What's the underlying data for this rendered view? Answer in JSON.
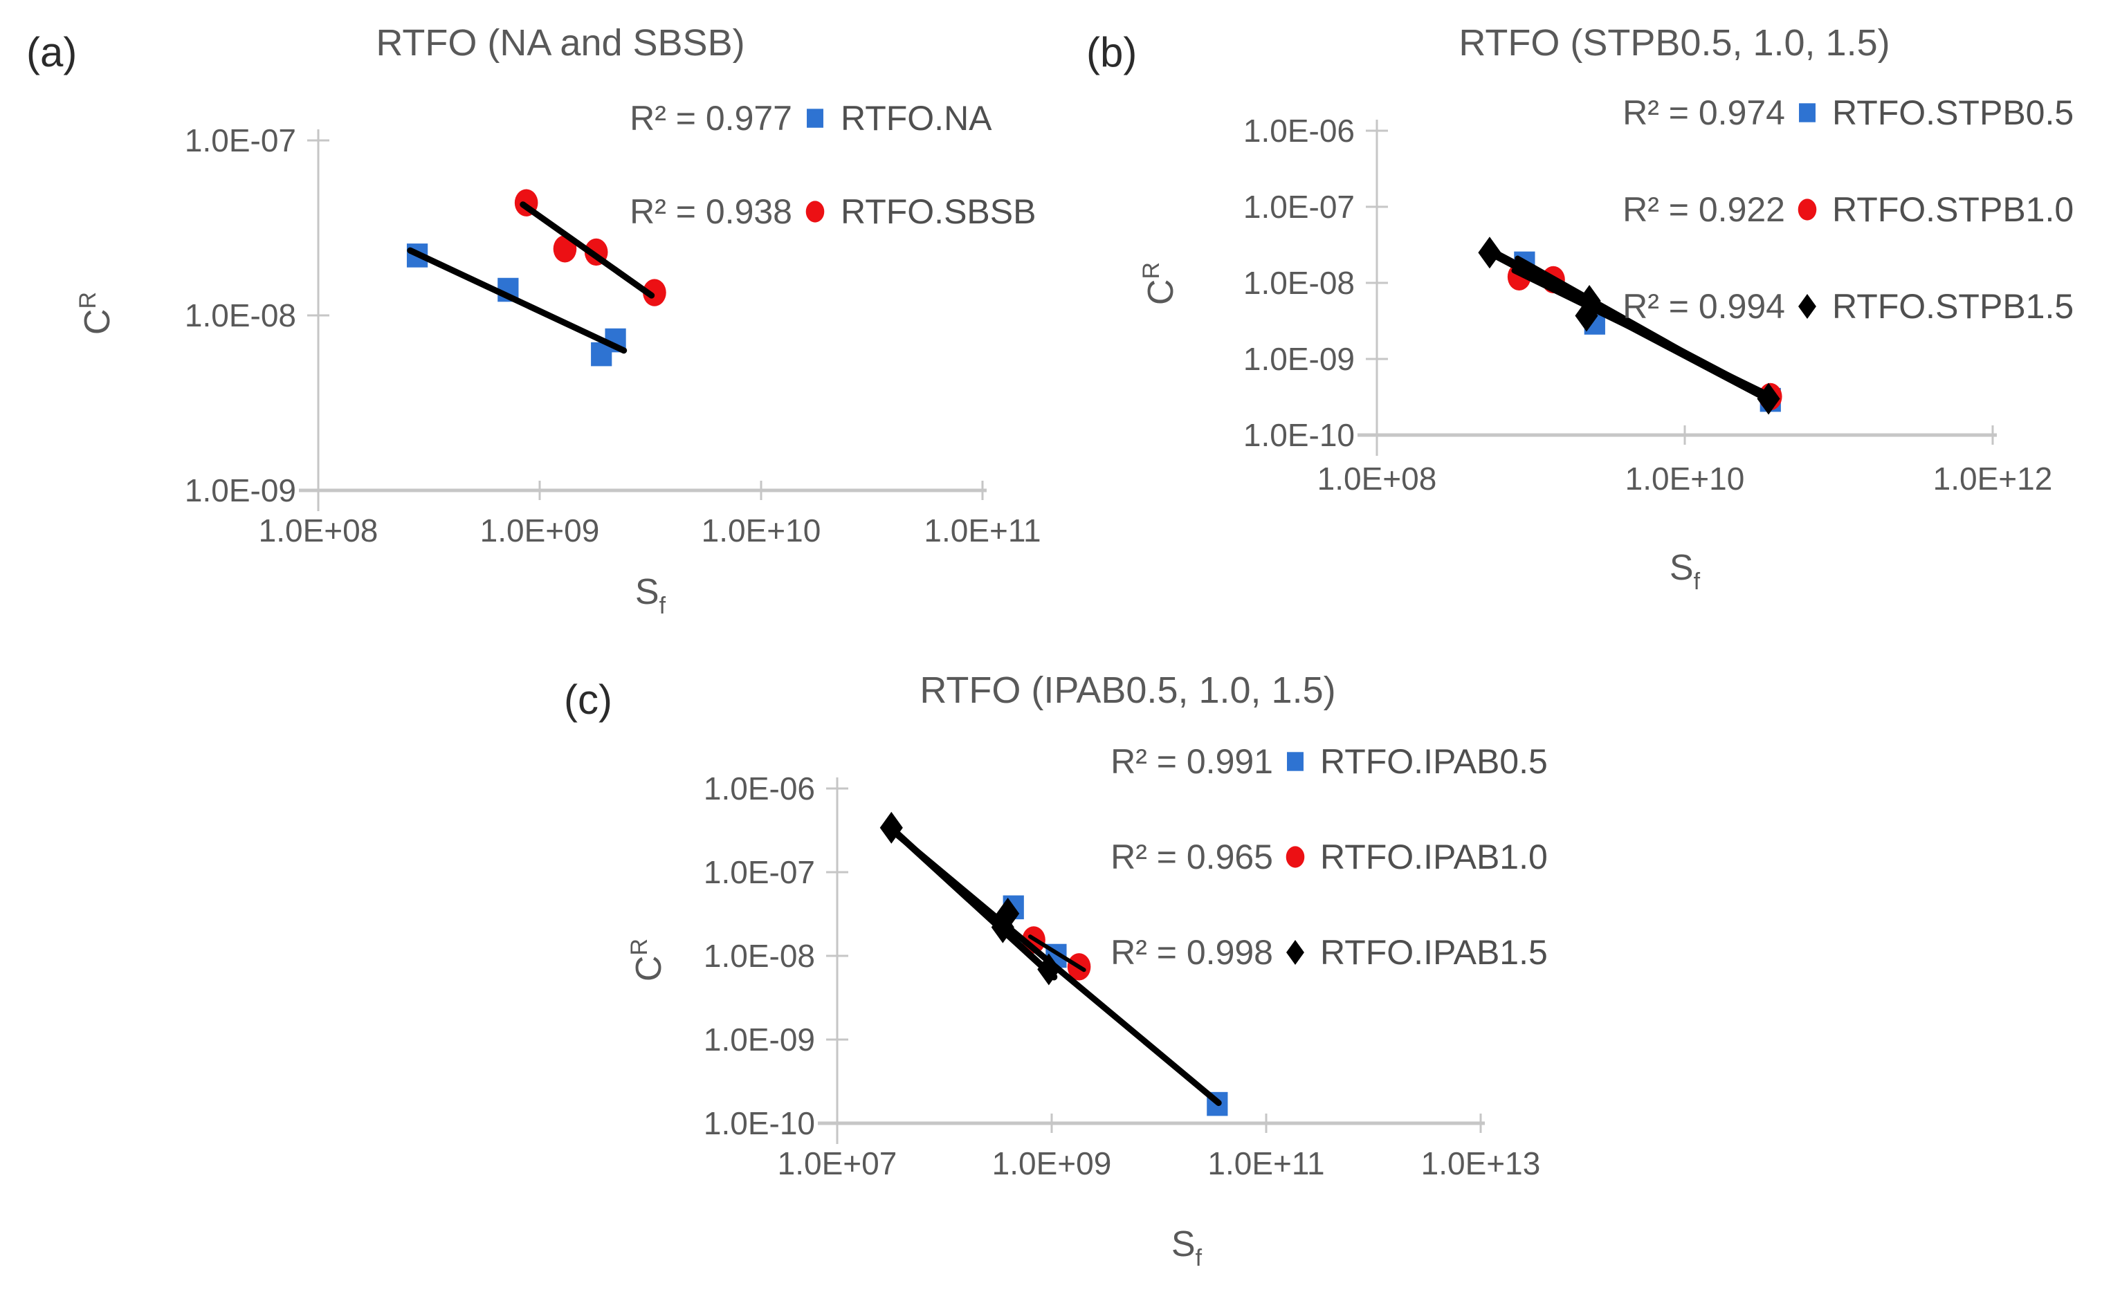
{
  "figure": {
    "background": "#ffffff"
  },
  "colors": {
    "blue": "#2E73D2",
    "red": "#EC1014",
    "black": "#000000",
    "axis": "#C6C6C6",
    "tick_text": "#595959",
    "title_text": "#595959",
    "panel_letter": "#2b2b2b"
  },
  "chart_data": [
    {
      "id": "a",
      "panel_label": "(a)",
      "title": "RTFO (NA and SBSB)",
      "type": "scatter",
      "xlabel": {
        "base": "S",
        "sub": "f"
      },
      "ylabel": {
        "base": "C",
        "sup": "R"
      },
      "x_axis": {
        "scale": "log",
        "min": 100000000.0,
        "max": 100000000000.0,
        "tick_labels": [
          "1.0E+08",
          "1.0E+09",
          "1.0E+10",
          "1.0E+11"
        ],
        "tick_values": [
          100000000.0,
          1000000000.0,
          10000000000.0,
          100000000000.0
        ]
      },
      "y_axis": {
        "scale": "log",
        "min": 1e-09,
        "max": 1e-07,
        "tick_labels": [
          "1.0E-07",
          "1.0E-08",
          "1.0E-09"
        ],
        "tick_values": [
          1e-07,
          1e-08,
          1e-09
        ]
      },
      "legend": [
        {
          "r2_label": "R² = 0.977",
          "marker": "square",
          "color": "blue",
          "label": "RTFO.NA"
        },
        {
          "r2_label": "R² = 0.938",
          "marker": "circle",
          "color": "red",
          "label": "RTFO.SBSB"
        }
      ],
      "series": [
        {
          "name": "RTFO.NA",
          "marker": "square",
          "color": "blue",
          "points": [
            [
              280000000.0,
              2.2e-08
            ],
            [
              720000000.0,
              1.4e-08
            ],
            [
              2200000000.0,
              7.2e-09
            ],
            [
              1900000000.0,
              6e-09
            ]
          ],
          "trend": [
            [
              260000000.0,
              2.35e-08
            ],
            [
              2400000000.0,
              6.3e-09
            ]
          ]
        },
        {
          "name": "RTFO.SBSB",
          "marker": "circle",
          "color": "red",
          "points": [
            [
              870000000.0,
              4.4e-08
            ],
            [
              1300000000.0,
              2.4e-08
            ],
            [
              1800000000.0,
              2.3e-08
            ],
            [
              3300000000.0,
              1.35e-08
            ]
          ],
          "trend": [
            [
              840000000.0,
              4.3e-08
            ],
            [
              3200000000.0,
              1.3e-08
            ]
          ]
        }
      ]
    },
    {
      "id": "b",
      "panel_label": "(b)",
      "title": "RTFO (STPB0.5, 1.0, 1.5)",
      "type": "scatter",
      "xlabel": {
        "base": "S",
        "sub": "f"
      },
      "ylabel": {
        "base": "C",
        "sup": "R"
      },
      "x_axis": {
        "scale": "log",
        "min": 100000000.0,
        "max": 1000000000000.0,
        "tick_labels": [
          "1.0E+08",
          "1.0E+10",
          "1.0E+12"
        ],
        "tick_values": [
          100000000.0,
          10000000000.0,
          1000000000000.0
        ]
      },
      "y_axis": {
        "scale": "log",
        "min": 1e-10,
        "max": 1e-06,
        "tick_labels": [
          "1.0E-06",
          "1.0E-07",
          "1.0E-08",
          "1.0E-09",
          "1.0E-10"
        ],
        "tick_values": [
          1e-06,
          1e-07,
          1e-08,
          1e-09,
          1e-10
        ]
      },
      "legend": [
        {
          "r2_label": "R² = 0.974",
          "marker": "square",
          "color": "blue",
          "label": "RTFO.STPB0.5"
        },
        {
          "r2_label": "R² = 0.922",
          "marker": "circle",
          "color": "red",
          "label": "RTFO.STPB1.0"
        },
        {
          "r2_label": "R² = 0.994",
          "marker": "diamond",
          "color": "black",
          "label": "RTFO.STPB1.5"
        }
      ],
      "series": [
        {
          "name": "RTFO.STPB0.5",
          "marker": "square",
          "color": "blue",
          "points": [
            [
              910000000.0,
              1.8e-08
            ],
            [
              2600000000.0,
              3e-09
            ],
            [
              36000000000.0,
              2.9e-10
            ]
          ],
          "trend": [
            [
              820000000.0,
              2.1e-08
            ],
            [
              36500000000.0,
              2.8e-10
            ]
          ]
        },
        {
          "name": "RTFO.STPB1.0",
          "marker": "circle",
          "color": "red",
          "points": [
            [
              840000000.0,
              1.2e-08
            ],
            [
              1400000000.0,
              1.1e-08
            ],
            [
              36000000000.0,
              3.2e-10
            ]
          ],
          "trend": [
            [
              780000000.0,
              1.45e-08
            ],
            [
              37000000000.0,
              3.2e-10
            ]
          ]
        },
        {
          "name": "RTFO.STPB1.5",
          "marker": "diamond",
          "color": "black",
          "points": [
            [
              540000000.0,
              2.5e-08
            ],
            [
              2400000000.0,
              5.8e-09
            ],
            [
              2300000000.0,
              3.7e-09
            ],
            [
              35000000000.0,
              3e-10
            ]
          ],
          "trend": [
            [
              520000000.0,
              2.7e-08
            ],
            [
              35500000000.0,
              3e-10
            ]
          ]
        }
      ]
    },
    {
      "id": "c",
      "panel_label": "(c)",
      "title": "RTFO (IPAB0.5, 1.0, 1.5)",
      "type": "scatter",
      "xlabel": {
        "base": "S",
        "sub": "f"
      },
      "ylabel": {
        "base": "C",
        "sup": "R"
      },
      "x_axis": {
        "scale": "log",
        "min": 10000000.0,
        "max": 10000000000000.0,
        "tick_labels": [
          "1.0E+07",
          "1.0E+09",
          "1.0E+11",
          "1.0E+13"
        ],
        "tick_values": [
          10000000.0,
          1000000000.0,
          100000000000.0,
          10000000000000.0
        ]
      },
      "y_axis": {
        "scale": "log",
        "min": 1e-10,
        "max": 1e-06,
        "tick_labels": [
          "1.0E-06",
          "1.0E-07",
          "1.0E-08",
          "1.0E-09",
          "1.0E-10"
        ],
        "tick_values": [
          1e-06,
          1e-07,
          1e-08,
          1e-09,
          1e-10
        ]
      },
      "legend": [
        {
          "r2_label": "R² = 0.991",
          "marker": "square",
          "color": "blue",
          "label": "RTFO.IPAB0.5"
        },
        {
          "r2_label": "R² = 0.965",
          "marker": "circle",
          "color": "red",
          "label": "RTFO.IPAB1.0"
        },
        {
          "r2_label": "R² = 0.998",
          "marker": "diamond",
          "color": "black",
          "label": "RTFO.IPAB1.5"
        }
      ],
      "series": [
        {
          "name": "RTFO.IPAB0.5",
          "marker": "square",
          "color": "blue",
          "points": [
            [
              440000000.0,
              3.8e-08
            ],
            [
              1100000000.0,
              1e-08
            ],
            [
              35000000000.0,
              1.7e-10
            ]
          ],
          "trend": [
            [
              32000000.0,
              3.2e-07
            ],
            [
              36000000000.0,
              1.75e-10
            ]
          ]
        },
        {
          "name": "RTFO.IPAB1.0",
          "marker": "circle",
          "color": "red",
          "points": [
            [
              680000000.0,
              1.55e-08
            ],
            [
              1800000000.0,
              7.4e-09
            ]
          ],
          "trend": [
            [
              630000000.0,
              1.7e-08
            ],
            [
              2000000000.0,
              6.8e-09
            ]
          ]
        },
        {
          "name": "RTFO.IPAB1.5",
          "marker": "diamond",
          "color": "black",
          "points": [
            [
              32000000.0,
              3.4e-07
            ],
            [
              390000000.0,
              3.2e-08
            ],
            [
              350000000.0,
              2.2e-08
            ],
            [
              940000000.0,
              6.9e-09
            ]
          ],
          "trend": [
            [
              30000000.0,
              3.6e-07
            ],
            [
              1050000000.0,
              5.6e-09
            ]
          ]
        }
      ]
    }
  ]
}
